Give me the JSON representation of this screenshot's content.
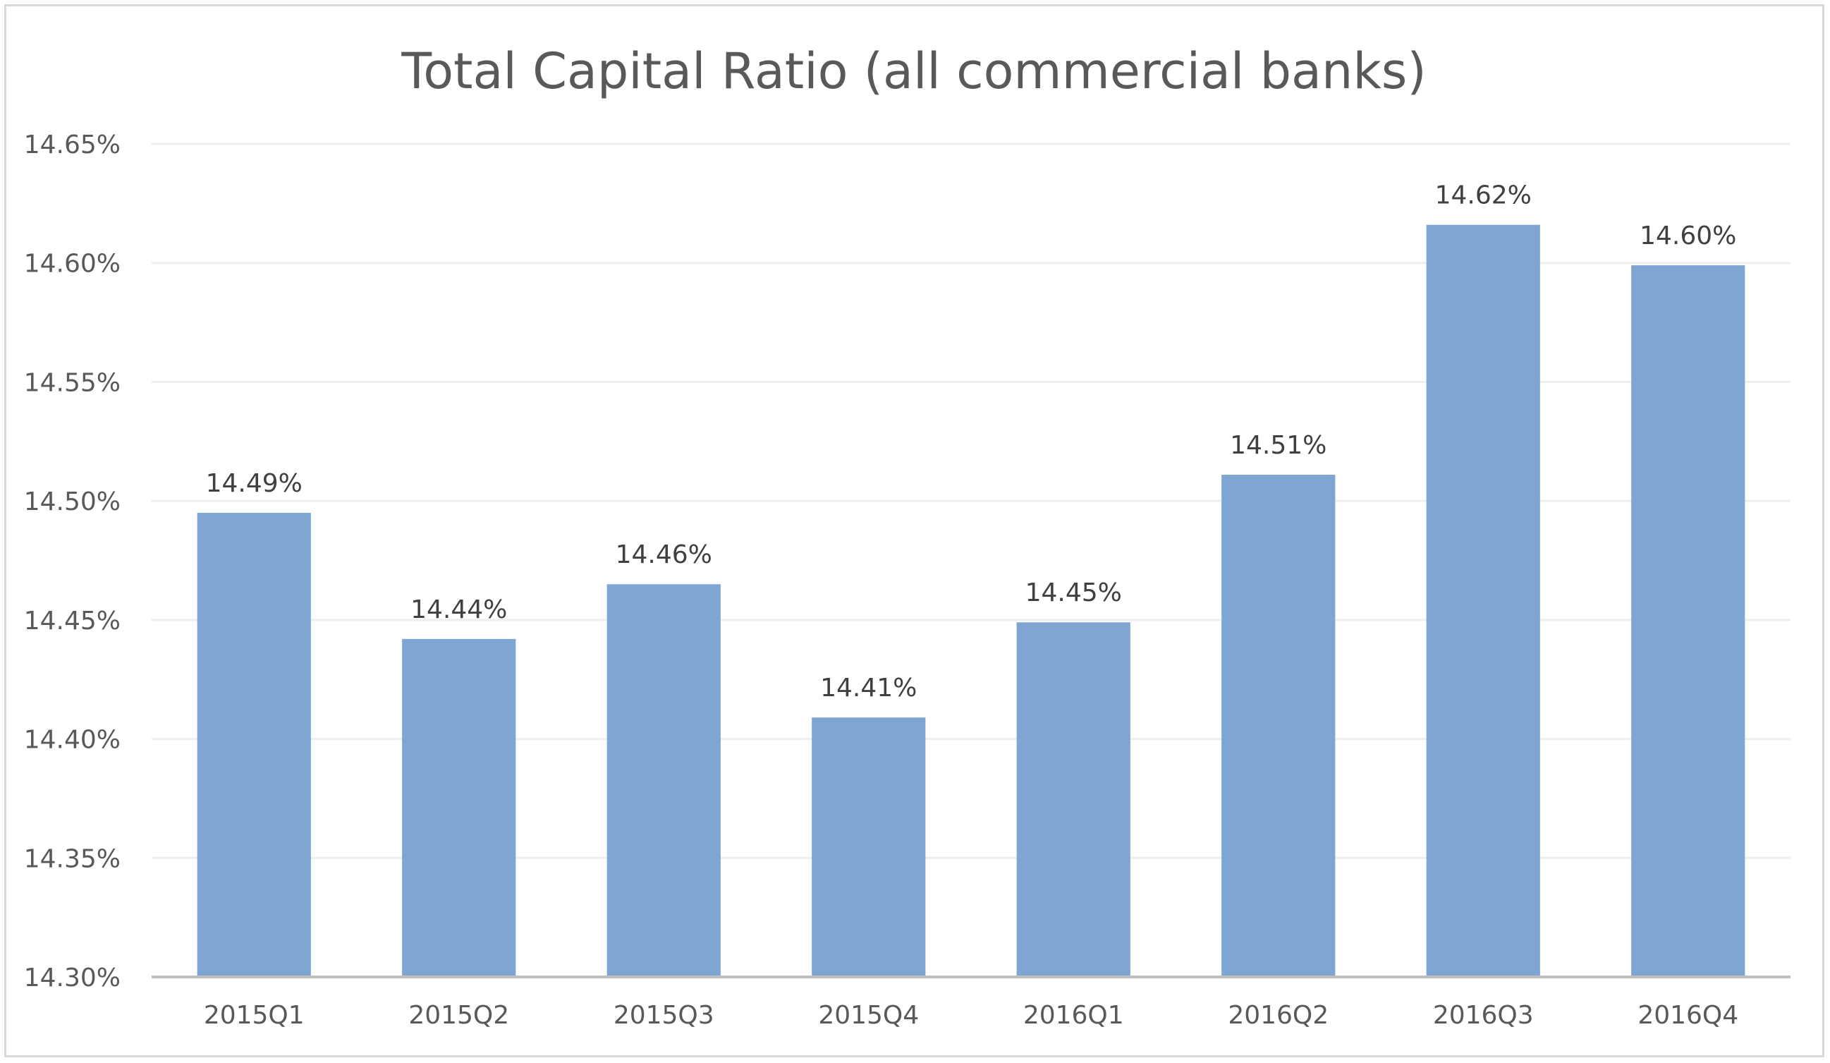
{
  "chart_data": {
    "type": "bar",
    "title": "Total Capital Ratio (all commercial banks)",
    "xlabel": "",
    "ylabel": "",
    "categories": [
      "2015Q1",
      "2015Q2",
      "2015Q3",
      "2015Q4",
      "2016Q1",
      "2016Q2",
      "2016Q3",
      "2016Q4"
    ],
    "values": [
      14.495,
      14.442,
      14.465,
      14.409,
      14.449,
      14.511,
      14.616,
      14.599
    ],
    "data_labels": [
      "14.49%",
      "14.44%",
      "14.46%",
      "14.41%",
      "14.45%",
      "14.51%",
      "14.62%",
      "14.60%"
    ],
    "ylim": [
      14.3,
      14.65
    ],
    "y_ticks": [
      14.3,
      14.35,
      14.4,
      14.45,
      14.5,
      14.55,
      14.6,
      14.65
    ],
    "y_tick_labels": [
      "14.30%",
      "14.35%",
      "14.40%",
      "14.45%",
      "14.50%",
      "14.55%",
      "14.60%",
      "14.65%"
    ],
    "grid": true,
    "legend": "none",
    "bar_color": "#7fa6d2"
  }
}
